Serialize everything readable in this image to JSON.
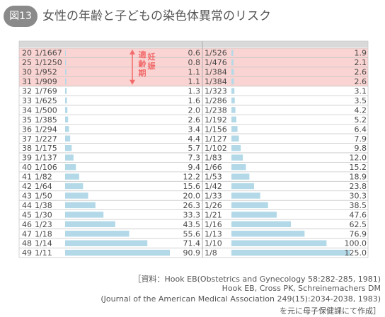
{
  "figure": {
    "badge": "図13",
    "title": "女性の年齢と子どもの染色体異常のリスク"
  },
  "chart_data": {
    "type": "table",
    "ages": [
      20,
      25,
      30,
      31,
      32,
      33,
      34,
      35,
      36,
      37,
      38,
      39,
      40,
      41,
      42,
      43,
      44,
      45,
      46,
      47,
      48,
      49
    ],
    "down_syndrome": {
      "ratio": [
        "1/1667",
        "1/1250",
        "1/952",
        "1/909",
        "1/769",
        "1/625",
        "1/500",
        "1/385",
        "1/294",
        "1/227",
        "1/175",
        "1/137",
        "1/106",
        "1/82",
        "1/64",
        "1/50",
        "1/38",
        "1/30",
        "1/23",
        "1/18",
        "1/14",
        "1/11"
      ],
      "values": [
        0.6,
        0.8,
        1.1,
        1.1,
        1.3,
        1.6,
        2.0,
        2.6,
        3.4,
        4.4,
        5.7,
        7.3,
        9.4,
        12.2,
        15.6,
        20.0,
        26.3,
        33.3,
        43.5,
        55.6,
        71.4,
        90.9
      ]
    },
    "all_abnormalities": {
      "ratio": [
        "1/526",
        "1/476",
        "1/384",
        "1/384",
        "1/323",
        "1/286",
        "1/238",
        "1/192",
        "1/156",
        "1/127",
        "1/102",
        "1/83",
        "1/66",
        "1/53",
        "1/42",
        "1/33",
        "1/26",
        "1/21",
        "1/16",
        "1/13",
        "1/10",
        "1/8"
      ],
      "values": [
        1.9,
        2.1,
        2.6,
        2.6,
        3.1,
        3.5,
        4.2,
        5.2,
        6.4,
        7.9,
        9.8,
        12.0,
        15.2,
        18.9,
        23.8,
        30.3,
        38.5,
        47.6,
        62.5,
        76.9,
        100.0,
        125.0
      ]
    },
    "value_labels_left": [
      "0.6",
      "0.8",
      "1.1",
      "1.1",
      "1.3",
      "1.6",
      "2.0",
      "2.6",
      "3.4",
      "4.4",
      "5.7",
      "7.3",
      "9.4",
      "12.2",
      "15.6",
      "20.0",
      "26.3",
      "33.3",
      "43.5",
      "55.6",
      "71.4",
      "90.9"
    ],
    "value_labels_right": [
      "1.9",
      "2.1",
      "2.6",
      "2.6",
      "3.1",
      "3.5",
      "4.2",
      "5.2",
      "6.4",
      "7.9",
      "9.8",
      "12.0",
      "15.2",
      "18.9",
      "23.8",
      "30.3",
      "38.5",
      "47.6",
      "62.5",
      "76.9",
      "100.0",
      "125.0"
    ],
    "highlight_rows": 4,
    "annotation": "適齢期",
    "annotation_sub": "妊娠",
    "colors": {
      "bar": "#b3d9e8",
      "highlight": "#f9d4d2",
      "annotation": "#f26b6b",
      "header": "#d9d9d9",
      "grid": "#c8c8c8",
      "text": "#4a4a4a"
    }
  },
  "source": {
    "line1": "［資料：Hook EB(Obstetrics and Gynecology 58:282-285, 1981)",
    "line2": "Hook EB, Cross PK, Schreinemachers DM",
    "line3": "(Journal of the American Medical Association 249(15):2034-2038, 1983)",
    "line4": "を元に母子保健課にて作成］"
  }
}
